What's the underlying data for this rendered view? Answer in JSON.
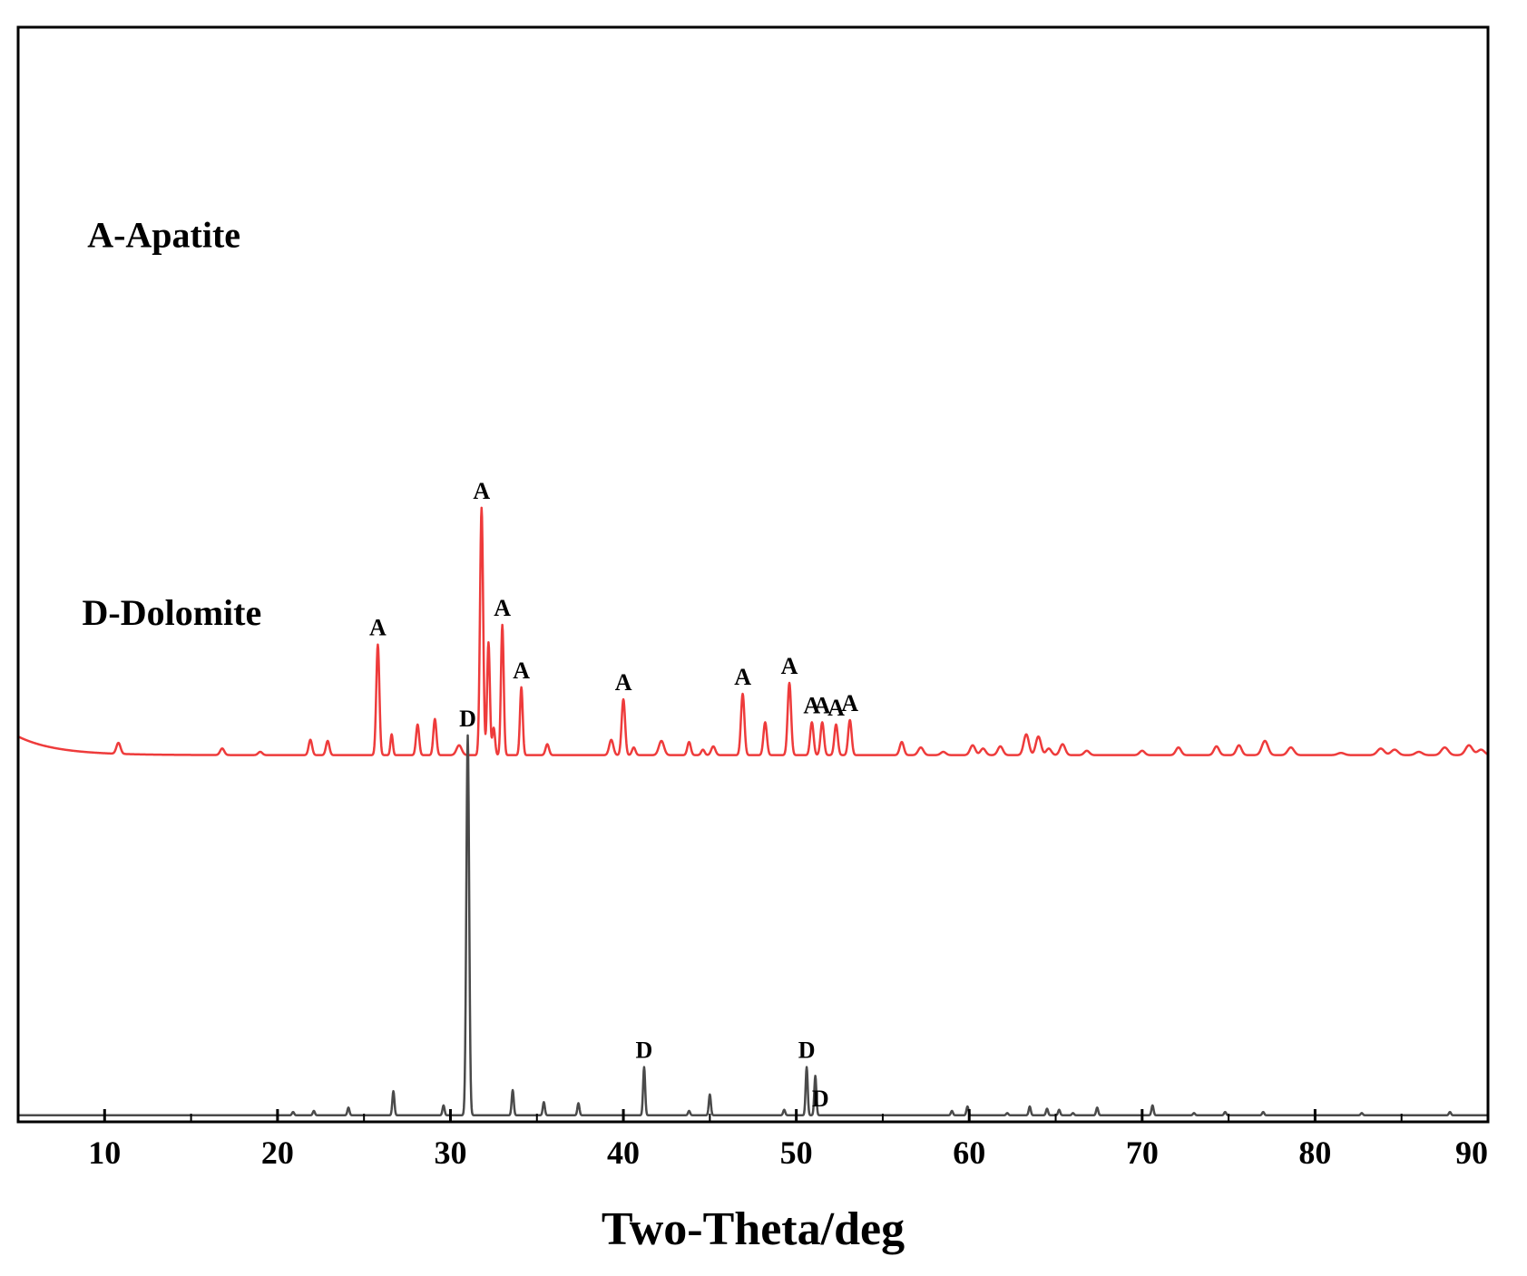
{
  "chart_data": {
    "type": "line",
    "xlabel": "Two-Theta/deg",
    "ylabel": "",
    "xlim": [
      5,
      90
    ],
    "ylim": [
      0,
      100
    ],
    "x_ticks": [
      10,
      20,
      30,
      40,
      50,
      60,
      70,
      80,
      90
    ],
    "y_ticks_shown": false,
    "grid": false,
    "colors": {
      "apatite": "#ee3b3b",
      "dolomite": "#4a4a4a",
      "frame": "#000000"
    },
    "annotations": [
      {
        "text": "A-Apatite",
        "x": 9.0,
        "y": 79.9
      },
      {
        "text": "D-Dolomite",
        "x": 8.7,
        "y": 45.4
      }
    ],
    "series": [
      {
        "baseline": 33.5,
        "edge_start": 35.2,
        "peaks": [
          [
            10.8,
            1.0,
            0.12
          ],
          [
            16.8,
            0.6,
            0.12
          ],
          [
            19.0,
            0.3,
            0.12
          ],
          [
            21.9,
            1.4,
            0.1
          ],
          [
            22.9,
            1.3,
            0.1
          ],
          [
            25.8,
            10.1,
            0.09
          ],
          [
            26.6,
            1.9,
            0.07
          ],
          [
            28.1,
            2.8,
            0.09
          ],
          [
            29.1,
            3.3,
            0.09
          ],
          [
            30.5,
            0.9,
            0.15
          ],
          [
            31.8,
            22.6,
            0.09
          ],
          [
            32.2,
            10.3,
            0.08
          ],
          [
            32.5,
            2.5,
            0.08
          ],
          [
            33.0,
            11.9,
            0.08
          ],
          [
            34.1,
            6.2,
            0.08
          ],
          [
            35.6,
            1.0,
            0.1
          ],
          [
            39.3,
            1.4,
            0.12
          ],
          [
            40.0,
            5.1,
            0.1
          ],
          [
            40.6,
            0.7,
            0.1
          ],
          [
            42.2,
            1.3,
            0.15
          ],
          [
            43.8,
            1.2,
            0.1
          ],
          [
            44.6,
            0.5,
            0.1
          ],
          [
            45.2,
            0.8,
            0.12
          ],
          [
            46.9,
            5.6,
            0.1
          ],
          [
            48.2,
            3.0,
            0.1
          ],
          [
            49.6,
            6.6,
            0.1
          ],
          [
            50.9,
            3.0,
            0.1
          ],
          [
            51.5,
            3.0,
            0.1
          ],
          [
            52.3,
            2.8,
            0.1
          ],
          [
            53.1,
            3.2,
            0.1
          ],
          [
            56.1,
            1.2,
            0.12
          ],
          [
            57.2,
            0.7,
            0.15
          ],
          [
            58.5,
            0.3,
            0.15
          ],
          [
            60.2,
            0.9,
            0.15
          ],
          [
            60.8,
            0.6,
            0.15
          ],
          [
            61.8,
            0.8,
            0.15
          ],
          [
            63.3,
            1.9,
            0.15
          ],
          [
            64.0,
            1.7,
            0.15
          ],
          [
            64.6,
            0.6,
            0.15
          ],
          [
            65.4,
            1.0,
            0.15
          ],
          [
            66.8,
            0.4,
            0.15
          ],
          [
            70.0,
            0.4,
            0.15
          ],
          [
            72.1,
            0.7,
            0.15
          ],
          [
            74.3,
            0.8,
            0.15
          ],
          [
            75.6,
            0.9,
            0.15
          ],
          [
            77.1,
            1.3,
            0.18
          ],
          [
            78.6,
            0.7,
            0.18
          ],
          [
            81.5,
            0.2,
            0.2
          ],
          [
            83.8,
            0.6,
            0.2
          ],
          [
            84.6,
            0.5,
            0.2
          ],
          [
            86.0,
            0.3,
            0.2
          ],
          [
            87.5,
            0.7,
            0.2
          ],
          [
            88.9,
            0.9,
            0.2
          ],
          [
            89.6,
            0.5,
            0.2
          ]
        ],
        "labels": [
          [
            25.8,
            "A"
          ],
          [
            31.8,
            "A"
          ],
          [
            33.0,
            "A"
          ],
          [
            34.1,
            "A"
          ],
          [
            40.0,
            "A"
          ],
          [
            46.9,
            "A"
          ],
          [
            49.6,
            "A"
          ],
          [
            50.9,
            "A"
          ],
          [
            51.5,
            "A"
          ],
          [
            52.3,
            "A"
          ],
          [
            53.1,
            "A"
          ]
        ]
      },
      {
        "baseline": 0.6,
        "edge_start": 0.6,
        "peaks": [
          [
            20.9,
            0.3,
            0.06
          ],
          [
            22.1,
            0.4,
            0.06
          ],
          [
            24.1,
            0.7,
            0.06
          ],
          [
            26.7,
            2.2,
            0.06
          ],
          [
            29.6,
            0.9,
            0.06
          ],
          [
            31.0,
            34.7,
            0.08
          ],
          [
            33.6,
            2.3,
            0.06
          ],
          [
            35.4,
            1.2,
            0.06
          ],
          [
            37.4,
            1.1,
            0.06
          ],
          [
            41.2,
            4.4,
            0.06
          ],
          [
            43.8,
            0.4,
            0.06
          ],
          [
            45.0,
            1.9,
            0.06
          ],
          [
            49.3,
            0.5,
            0.06
          ],
          [
            50.6,
            4.4,
            0.06
          ],
          [
            51.1,
            3.6,
            0.06
          ],
          [
            59.0,
            0.4,
            0.06
          ],
          [
            59.9,
            0.8,
            0.06
          ],
          [
            62.2,
            0.2,
            0.06
          ],
          [
            63.5,
            0.8,
            0.06
          ],
          [
            64.5,
            0.6,
            0.06
          ],
          [
            65.2,
            0.5,
            0.06
          ],
          [
            66.0,
            0.2,
            0.06
          ],
          [
            67.4,
            0.7,
            0.06
          ],
          [
            70.6,
            0.9,
            0.06
          ],
          [
            73.0,
            0.2,
            0.06
          ],
          [
            74.8,
            0.3,
            0.06
          ],
          [
            77.0,
            0.3,
            0.06
          ],
          [
            82.7,
            0.2,
            0.06
          ],
          [
            87.8,
            0.3,
            0.06
          ]
        ],
        "labels": [
          [
            31.0,
            "D"
          ],
          [
            41.2,
            "D"
          ],
          [
            50.6,
            "D"
          ],
          [
            51.4,
            "D"
          ]
        ]
      }
    ]
  }
}
